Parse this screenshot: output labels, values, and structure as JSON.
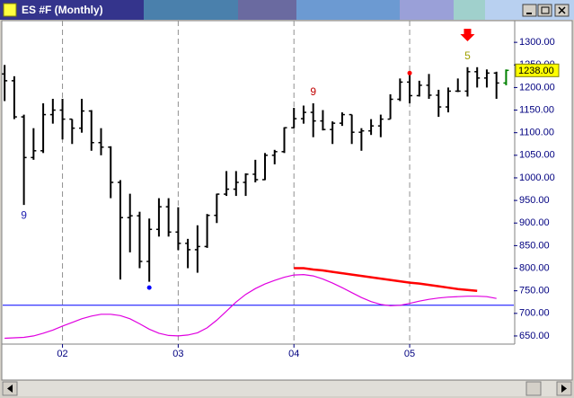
{
  "window_title": "ES #F (Monthly)",
  "chart_data": {
    "type": "ohlc",
    "x": [
      0,
      1,
      2,
      3,
      4,
      5,
      6,
      7,
      8,
      9,
      10,
      11,
      12,
      13,
      14,
      15,
      16,
      17,
      18,
      19,
      20,
      21,
      22,
      23,
      24,
      25,
      26,
      27,
      28,
      29,
      30,
      31,
      32,
      33,
      34,
      35,
      36,
      37,
      38,
      39,
      40,
      41,
      42,
      43,
      44,
      45,
      46,
      47,
      48,
      49,
      50,
      51,
      52
    ],
    "xlim": [
      -0.2,
      52.8
    ],
    "xticks": [
      {
        "value": 6,
        "label": "02"
      },
      {
        "value": 18,
        "label": "03"
      },
      {
        "value": 30,
        "label": "04"
      },
      {
        "value": 42,
        "label": "05"
      }
    ],
    "x_grid": true,
    "ylim": [
      632,
      1348
    ],
    "yticks": [
      {
        "value": 650,
        "label": "650.00"
      },
      {
        "value": 700,
        "label": "700.00"
      },
      {
        "value": 750,
        "label": "750.00"
      },
      {
        "value": 800,
        "label": "800.00"
      },
      {
        "value": 850,
        "label": "850.00"
      },
      {
        "value": 900,
        "label": "900.00"
      },
      {
        "value": 950,
        "label": "950.00"
      },
      {
        "value": 1000,
        "label": "1000.00"
      },
      {
        "value": 1050,
        "label": "1050.00"
      },
      {
        "value": 1100,
        "label": "1100.00"
      },
      {
        "value": 1150,
        "label": "1150.00"
      },
      {
        "value": 1200,
        "label": "1200.00"
      },
      {
        "value": 1250,
        "label": "1250.00"
      },
      {
        "value": 1300,
        "label": "1300.00"
      }
    ],
    "color": "#000000",
    "last_bar_color": "#008000",
    "open": [
      1230,
      1215,
      1135,
      1045,
      1060,
      1140,
      1150,
      1130,
      1110,
      1148,
      1078,
      1068,
      990,
      912,
      916,
      815,
      886,
      936,
      880,
      855,
      841,
      848,
      917,
      964,
      975,
      990,
      1008,
      996,
      1050,
      1058,
      1111,
      1131,
      1145,
      1126,
      1107,
      1121,
      1140,
      1101,
      1104,
      1115,
      1130,
      1174,
      1212,
      1182,
      1205,
      1183,
      1157,
      1192,
      1192,
      1235,
      1221,
      1232,
      1210
    ],
    "high": [
      1250,
      1225,
      1140,
      1110,
      1165,
      1175,
      1175,
      1130,
      1175,
      1150,
      1110,
      1070,
      995,
      965,
      925,
      910,
      955,
      955,
      935,
      865,
      895,
      920,
      965,
      1015,
      1015,
      1010,
      1040,
      1055,
      1062,
      1112,
      1155,
      1160,
      1165,
      1150,
      1125,
      1145,
      1140,
      1110,
      1130,
      1140,
      1185,
      1220,
      1232,
      1215,
      1230,
      1195,
      1200,
      1220,
      1245,
      1245,
      1240,
      1235,
      1240
    ],
    "low": [
      1170,
      1130,
      940,
      1040,
      1055,
      1120,
      1085,
      1075,
      1100,
      1060,
      1050,
      955,
      775,
      835,
      800,
      770,
      870,
      870,
      840,
      800,
      790,
      845,
      900,
      960,
      960,
      960,
      990,
      995,
      1030,
      1055,
      1110,
      1120,
      1090,
      1105,
      1075,
      1115,
      1075,
      1060,
      1095,
      1090,
      1130,
      1170,
      1165,
      1180,
      1175,
      1135,
      1145,
      1190,
      1180,
      1200,
      1200,
      1175,
      1205
    ],
    "close": [
      1215,
      1135,
      1045,
      1060,
      1140,
      1150,
      1130,
      1110,
      1148,
      1078,
      1068,
      990,
      912,
      916,
      815,
      886,
      936,
      880,
      855,
      841,
      848,
      917,
      964,
      975,
      990,
      1008,
      996,
      1050,
      1058,
      1111,
      1131,
      1145,
      1126,
      1107,
      1121,
      1140,
      1101,
      1104,
      1115,
      1130,
      1174,
      1212,
      1182,
      1205,
      1183,
      1157,
      1192,
      1192,
      1235,
      1221,
      1232,
      1210,
      1238
    ],
    "lines": [
      {
        "color": "#e000e0",
        "values": [
          645,
          646,
          647,
          650,
          656,
          663,
          672,
          680,
          688,
          694,
          698,
          698,
          695,
          688,
          677,
          665,
          656,
          651,
          650,
          652,
          657,
          668,
          685,
          705,
          725,
          742,
          755,
          765,
          773,
          780,
          785,
          786,
          783,
          776,
          767,
          757,
          746,
          735,
          726,
          720,
          717,
          718,
          722,
          727,
          731,
          734,
          736,
          737,
          738,
          738,
          737,
          733,
          null
        ]
      },
      {
        "color": "#ff0000",
        "values": [
          null,
          null,
          null,
          null,
          null,
          null,
          null,
          null,
          null,
          null,
          null,
          null,
          null,
          null,
          null,
          null,
          null,
          null,
          null,
          null,
          null,
          null,
          null,
          null,
          null,
          null,
          null,
          null,
          null,
          null,
          800,
          800,
          797,
          795,
          792,
          789,
          786,
          783,
          780,
          777,
          774,
          771,
          768,
          766,
          763,
          760,
          757,
          754,
          752,
          750,
          null,
          null,
          null
        ]
      }
    ],
    "hline": {
      "value": 718,
      "color": "#0000ff"
    },
    "annotations": [
      {
        "x": 2,
        "text": "9",
        "color": "#2020b0",
        "position": "below"
      },
      {
        "x": 32,
        "text": "9",
        "color": "#c00000",
        "position": "above"
      },
      {
        "x": 48,
        "text": "5",
        "color": "#a0a000",
        "position": "above"
      }
    ],
    "dots": [
      {
        "x": 15,
        "y": 757,
        "color": "#0000ff"
      },
      {
        "x": 42,
        "y": 1232,
        "color": "#ff0000"
      }
    ],
    "arrow": {
      "x": 48,
      "color": "#ff0000"
    },
    "last_price": {
      "value": 1238,
      "label": "1238.00"
    }
  }
}
